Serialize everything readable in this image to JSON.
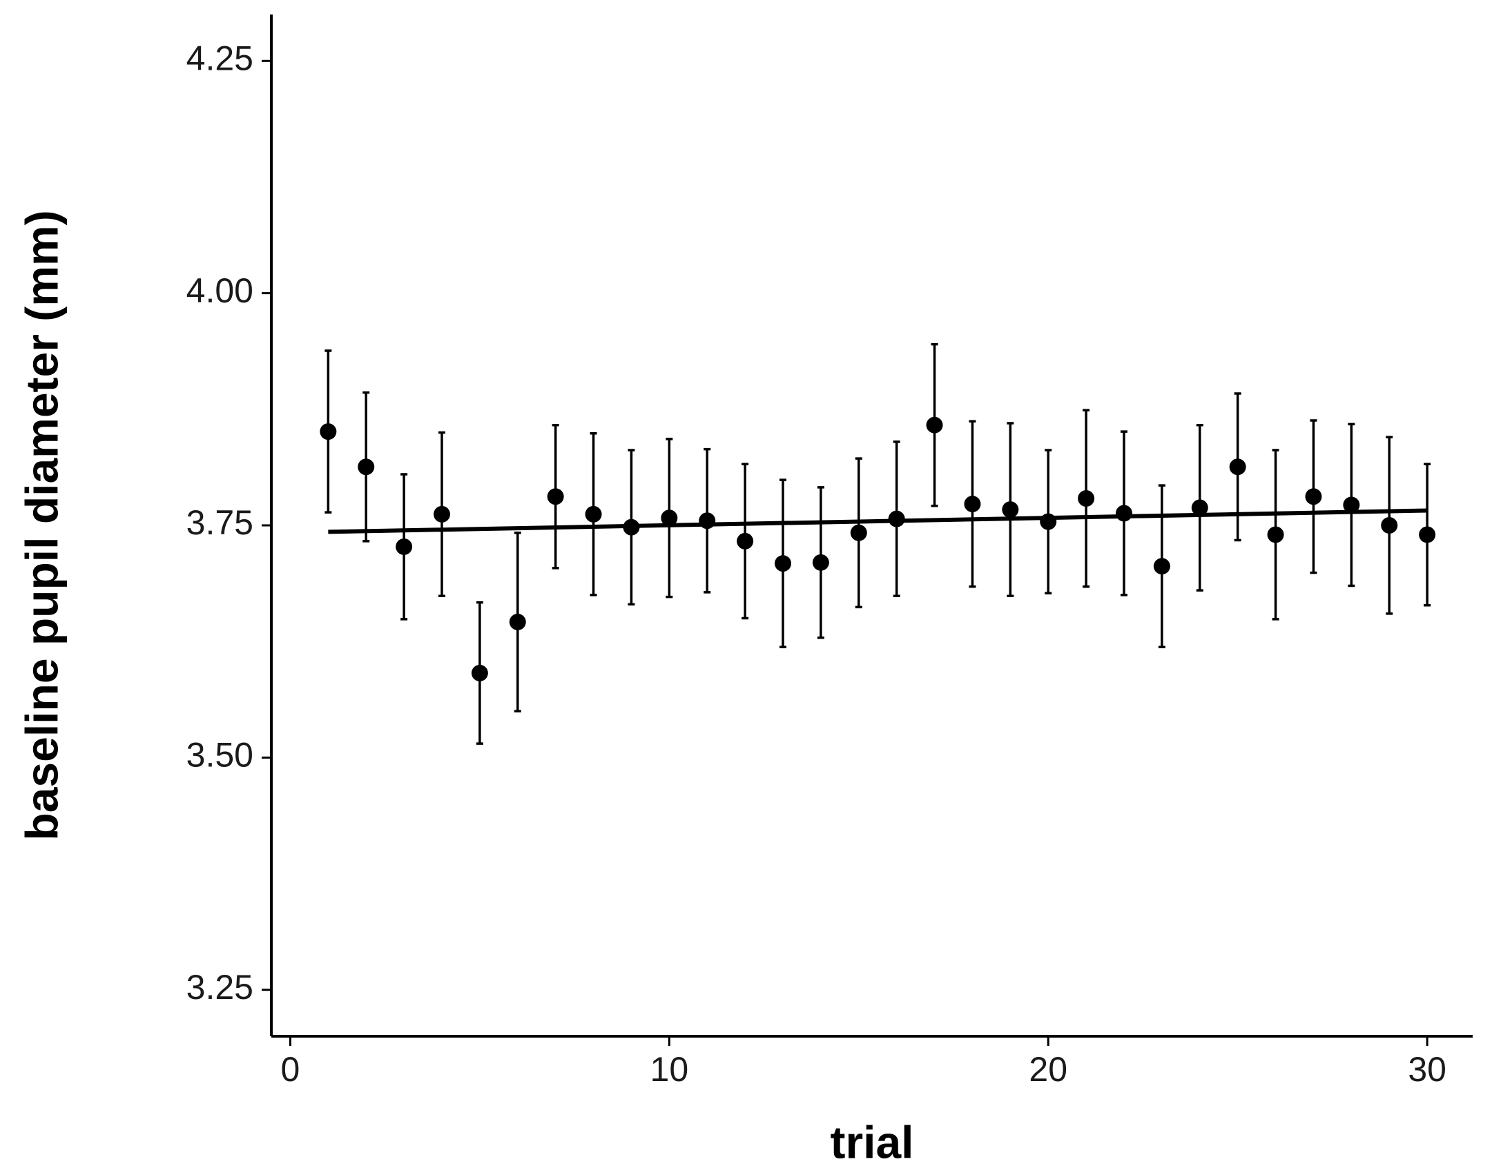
{
  "chart_data": {
    "type": "errorbar",
    "x_label": "trial",
    "y_label": "baseline pupil diameter (mm)",
    "x": [
      1,
      2,
      3,
      4,
      5,
      6,
      7,
      8,
      9,
      10,
      11,
      12,
      13,
      14,
      15,
      16,
      17,
      18,
      19,
      20,
      21,
      22,
      23,
      24,
      25,
      26,
      27,
      28,
      29,
      30
    ],
    "values": [
      3.851,
      3.813,
      3.727,
      3.762,
      3.591,
      3.646,
      3.781,
      3.762,
      3.748,
      3.758,
      3.755,
      3.733,
      3.709,
      3.71,
      3.742,
      3.757,
      3.858,
      3.773,
      3.767,
      3.754,
      3.779,
      3.763,
      3.706,
      3.769,
      3.813,
      3.74,
      3.781,
      3.772,
      3.75,
      3.74
    ],
    "errors": [
      0.087,
      0.08,
      0.078,
      0.088,
      0.076,
      0.096,
      0.077,
      0.087,
      0.083,
      0.085,
      0.077,
      0.083,
      0.09,
      0.081,
      0.08,
      0.083,
      0.087,
      0.089,
      0.093,
      0.077,
      0.095,
      0.088,
      0.087,
      0.089,
      0.079,
      0.091,
      0.082,
      0.087,
      0.095,
      0.076
    ],
    "color": "#000000",
    "trend": {
      "x": [
        1,
        30
      ],
      "values": [
        3.743,
        3.766
      ]
    },
    "xlim": [
      -0.5,
      31.2
    ],
    "ylim": [
      3.2,
      4.3
    ],
    "xticks": [
      0,
      10,
      20,
      30
    ],
    "yticks": [
      {
        "value": 3.25,
        "label": "3.25"
      },
      {
        "value": 3.5,
        "label": "3.50"
      },
      3.75,
      {
        "value": 4,
        "label": "4.00"
      },
      4.25
    ],
    "grid": false
  }
}
